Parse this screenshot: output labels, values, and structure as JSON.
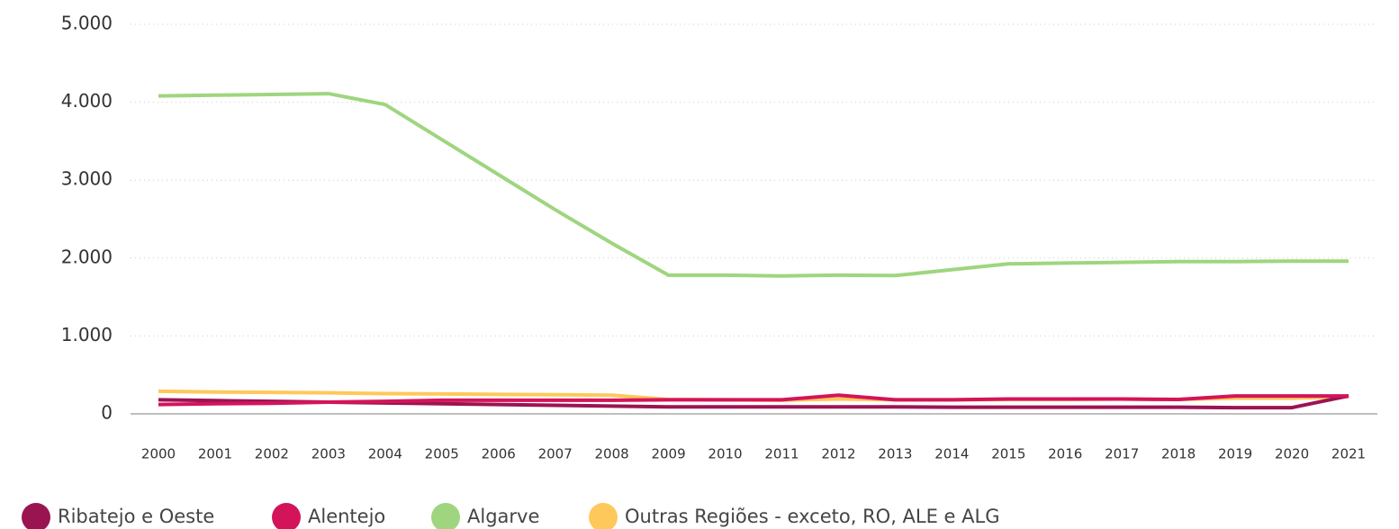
{
  "chart_data": {
    "type": "line",
    "categories": [
      "2000",
      "2001",
      "2002",
      "2003",
      "2004",
      "2005",
      "2006",
      "2007",
      "2008",
      "2009",
      "2010",
      "2011",
      "2012",
      "2013",
      "2014",
      "2015",
      "2016",
      "2017",
      "2018",
      "2019",
      "2020",
      "2021"
    ],
    "series": [
      {
        "name": "Ribatejo e Oeste",
        "color": "#9b1452",
        "values": [
          180,
          170,
          160,
          150,
          140,
          130,
          120,
          110,
          100,
          90,
          90,
          90,
          90,
          90,
          85,
          85,
          85,
          85,
          85,
          80,
          80,
          230
        ]
      },
      {
        "name": "Alentejo",
        "color": "#d4145a",
        "values": [
          120,
          130,
          135,
          150,
          160,
          175,
          175,
          175,
          175,
          180,
          180,
          180,
          240,
          180,
          180,
          190,
          190,
          190,
          185,
          230,
          230,
          230
        ]
      },
      {
        "name": "Algarve",
        "color": "#9fd57f",
        "values": [
          4080,
          4090,
          4100,
          4110,
          3970,
          3520,
          3070,
          2620,
          2190,
          1780,
          1780,
          1770,
          1780,
          1775,
          1850,
          1925,
          1935,
          1945,
          1955,
          1955,
          1960,
          1960
        ]
      },
      {
        "name": "Outras Regiões - exceto, RO, ALE e ALG",
        "color": "#ffc85a",
        "values": [
          290,
          280,
          275,
          270,
          260,
          255,
          250,
          245,
          240,
          185,
          180,
          175,
          190,
          180,
          180,
          185,
          185,
          190,
          185,
          200,
          200,
          220
        ]
      }
    ],
    "ylim": [
      0,
      5000
    ],
    "yticks": [
      0,
      {
        "value": 1000,
        "label": "1.000"
      },
      {
        "value": 2000,
        "label": "2.000"
      },
      {
        "value": 3000,
        "label": "3.000"
      },
      {
        "value": 4000,
        "label": "4.000"
      },
      {
        "value": 5000,
        "label": "5.000"
      }
    ],
    "grid": true
  }
}
